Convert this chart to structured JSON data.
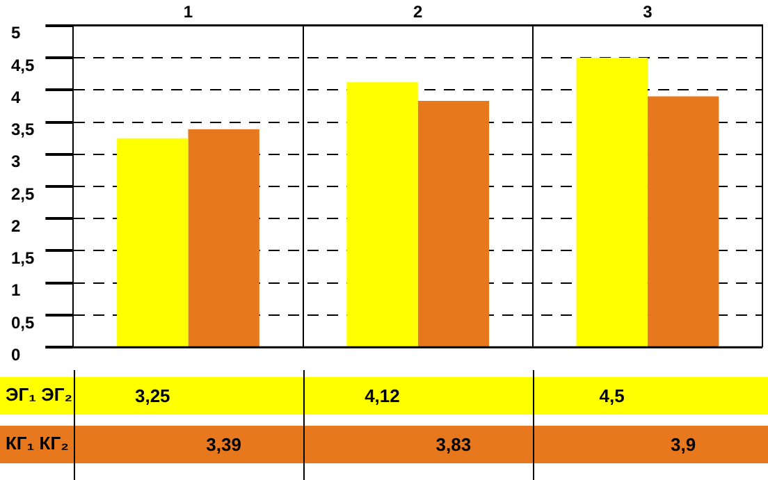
{
  "chart_data": {
    "type": "bar",
    "categories": [
      "1",
      "2",
      "3"
    ],
    "series": [
      {
        "name": "ЭГ₁ ЭГ₂",
        "color": "#ffff00",
        "values": [
          3.25,
          4.12,
          4.5
        ],
        "value_labels": [
          "3,25",
          "4,12",
          "4,5"
        ]
      },
      {
        "name": "КГ₁ КГ₂",
        "color": "#e8781e",
        "values": [
          3.39,
          3.83,
          3.9
        ],
        "value_labels": [
          "3,39",
          "3,83",
          "3,9"
        ]
      }
    ],
    "ylim": [
      0,
      5
    ],
    "yticks": [
      0,
      {
        "value": 0.5,
        "label": "0,5"
      },
      1,
      {
        "value": 1.5,
        "label": "1,5"
      },
      2,
      {
        "value": 2.5,
        "label": "2,5"
      },
      3,
      {
        "value": 3.5,
        "label": "3,5"
      },
      4,
      {
        "value": 4.5,
        "label": "4,5"
      },
      5
    ],
    "grid": "y",
    "legend": "bottom"
  }
}
